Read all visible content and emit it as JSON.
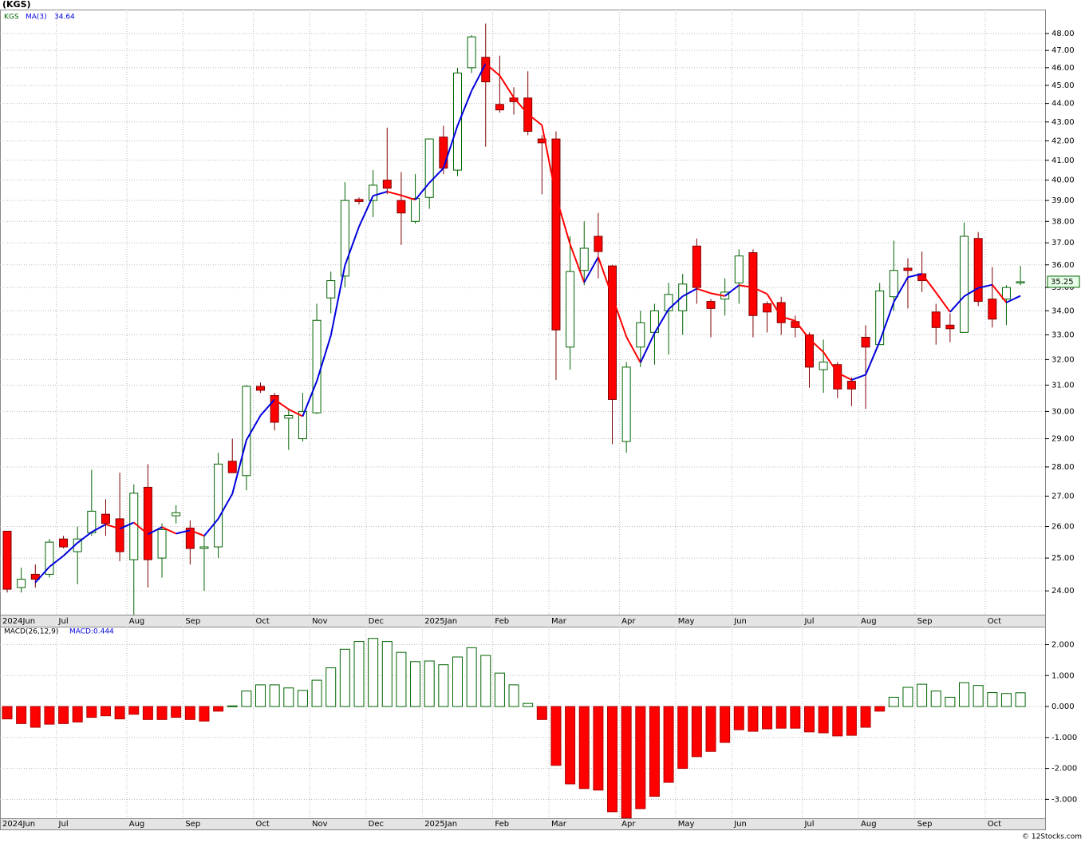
{
  "chart_data": [
    {
      "type": "candlestick",
      "title": "(KGS)",
      "log_scale": true,
      "grid": true,
      "categories": [
        "2024Jun",
        null,
        null,
        null,
        "Jul",
        null,
        null,
        null,
        null,
        "Aug",
        null,
        null,
        null,
        "Sep",
        null,
        null,
        null,
        null,
        "Oct",
        null,
        null,
        null,
        "Nov",
        null,
        null,
        null,
        "Dec",
        null,
        null,
        null,
        "2025Jan",
        null,
        null,
        null,
        null,
        "Feb",
        null,
        null,
        null,
        "Mar",
        null,
        null,
        null,
        null,
        "Apr",
        null,
        null,
        null,
        "May",
        null,
        null,
        null,
        "Jun",
        null,
        null,
        null,
        null,
        "Jul",
        null,
        null,
        null,
        "Aug",
        null,
        null,
        null,
        "Sep",
        null,
        null,
        null,
        null,
        "Oct",
        null,
        null
      ],
      "series": [
        {
          "name": "KGS",
          "color": "#006400",
          "down_color": "#ff0000",
          "open": [
            25.85,
            24.1,
            24.5,
            24.5,
            25.6,
            25.2,
            25.8,
            26.4,
            26.25,
            24.95,
            27.3,
            25.0,
            26.35,
            25.95,
            25.3,
            25.35,
            28.2,
            27.7,
            30.95,
            30.6,
            29.75,
            29.0,
            29.95,
            34.55,
            35.5,
            39.05,
            39.0,
            40.0,
            39.0,
            38.0,
            39.15,
            42.2,
            40.5,
            46.0,
            46.6,
            43.95,
            44.3,
            44.3,
            42.1,
            42.1,
            32.5,
            35.75,
            37.3,
            35.95,
            28.9,
            32.5,
            33.1,
            34.0,
            34.0,
            36.85,
            34.4,
            34.5,
            35.2,
            36.55,
            34.3,
            34.35,
            33.55,
            33.0,
            31.6,
            31.8,
            31.15,
            32.9,
            32.6,
            34.6,
            35.85,
            35.6,
            33.95,
            33.4,
            33.1,
            37.2,
            34.5,
            34.5,
            35.2
          ],
          "high": [
            25.85,
            24.7,
            24.8,
            25.6,
            25.7,
            26.0,
            27.9,
            26.9,
            27.8,
            27.4,
            28.1,
            26.1,
            26.7,
            26.2,
            25.7,
            28.5,
            29.0,
            31.0,
            31.1,
            30.7,
            30.1,
            30.7,
            34.3,
            35.7,
            39.9,
            39.15,
            40.5,
            42.7,
            40.4,
            40.3,
            42.1,
            42.8,
            46.0,
            47.9,
            48.6,
            46.7,
            44.9,
            45.8,
            42.3,
            42.5,
            37.3,
            38.0,
            38.4,
            36.0,
            31.9,
            34.0,
            34.3,
            35.2,
            35.6,
            37.2,
            34.5,
            35.4,
            36.7,
            36.7,
            34.4,
            34.6,
            33.8,
            33.1,
            32.8,
            31.9,
            31.3,
            33.4,
            35.2,
            37.1,
            36.3,
            36.6,
            34.3,
            33.9,
            37.95,
            37.5,
            35.9,
            35.1,
            35.95
          ],
          "low": [
            23.95,
            23.95,
            24.1,
            24.4,
            25.3,
            24.2,
            25.7,
            25.7,
            24.9,
            23.3,
            24.1,
            24.4,
            26.1,
            24.8,
            24.0,
            25.0,
            27.8,
            27.2,
            30.7,
            29.3,
            28.6,
            28.9,
            29.9,
            33.9,
            35.0,
            38.8,
            38.2,
            39.3,
            36.9,
            37.9,
            38.6,
            40.3,
            40.2,
            45.7,
            41.7,
            43.5,
            43.4,
            42.3,
            39.3,
            31.2,
            31.6,
            35.1,
            35.4,
            28.8,
            28.5,
            31.7,
            31.8,
            32.2,
            33.0,
            34.3,
            32.9,
            33.8,
            34.3,
            32.9,
            33.1,
            33.0,
            32.9,
            30.9,
            30.7,
            30.5,
            30.2,
            30.1,
            32.6,
            34.0,
            34.1,
            34.8,
            32.6,
            32.7,
            33.1,
            34.2,
            33.3,
            33.4,
            35.1
          ],
          "close": [
            24.05,
            24.35,
            24.35,
            25.5,
            25.35,
            25.6,
            26.5,
            26.1,
            25.2,
            27.1,
            24.95,
            25.9,
            26.45,
            25.3,
            25.35,
            28.1,
            27.8,
            30.95,
            30.8,
            29.6,
            29.85,
            30.0,
            33.6,
            35.3,
            39.0,
            38.95,
            39.75,
            39.6,
            38.4,
            39.1,
            42.1,
            40.6,
            45.7,
            47.8,
            45.2,
            43.65,
            44.1,
            42.5,
            41.9,
            33.2,
            35.7,
            36.75,
            36.6,
            30.45,
            31.7,
            33.5,
            34.0,
            34.7,
            35.15,
            35.0,
            34.1,
            34.8,
            36.4,
            33.8,
            33.95,
            33.5,
            33.3,
            31.7,
            31.9,
            30.85,
            30.85,
            32.5,
            34.85,
            35.75,
            35.75,
            35.3,
            33.3,
            33.25,
            37.3,
            34.4,
            33.65,
            35.0,
            35.25
          ]
        },
        {
          "name": "MA(3)",
          "color": "#0000dd",
          "down_color": "#ff0000",
          "values": [
            null,
            null,
            24.25,
            24.73,
            25.07,
            25.48,
            25.82,
            26.07,
            25.93,
            26.13,
            25.75,
            25.98,
            25.77,
            25.88,
            25.7,
            26.25,
            27.08,
            28.95,
            29.85,
            30.45,
            30.08,
            29.82,
            31.15,
            32.97,
            35.97,
            37.75,
            39.23,
            39.43,
            39.25,
            39.03,
            39.87,
            40.6,
            42.8,
            44.7,
            46.23,
            45.55,
            44.32,
            43.42,
            42.83,
            39.2,
            36.93,
            35.22,
            36.35,
            34.6,
            32.92,
            31.88,
            33.07,
            34.07,
            34.62,
            34.95,
            34.75,
            34.63,
            35.1,
            35.0,
            34.72,
            33.75,
            33.58,
            32.83,
            32.3,
            31.48,
            31.2,
            31.4,
            32.73,
            34.37,
            35.45,
            35.6,
            34.78,
            33.95,
            34.62,
            34.98,
            35.12,
            34.35,
            34.64
          ]
        }
      ],
      "ylim": [
        23.3,
        49.45
      ],
      "yticks": [
        {
          "value": 24,
          "label": "24.00"
        },
        {
          "value": 25,
          "label": "25.00"
        },
        {
          "value": 26,
          "label": "26.00"
        },
        {
          "value": 27,
          "label": "27.00"
        },
        {
          "value": 28,
          "label": "28.00"
        },
        {
          "value": 29,
          "label": "29.00"
        },
        {
          "value": 30,
          "label": "30.00"
        },
        {
          "value": 31,
          "label": "31.00"
        },
        {
          "value": 32,
          "label": "32.00"
        },
        {
          "value": 33,
          "label": "33.00"
        },
        {
          "value": 34,
          "label": "34.00"
        },
        {
          "value": 35,
          "label": "35.00"
        },
        {
          "value": 36,
          "label": "36.00"
        },
        {
          "value": 37,
          "label": "37.00"
        },
        {
          "value": 38,
          "label": "38.00"
        },
        {
          "value": 39,
          "label": "39.00"
        },
        {
          "value": 40,
          "label": "40.00"
        },
        {
          "value": 41,
          "label": "41.00"
        },
        {
          "value": 42,
          "label": "42.00"
        },
        {
          "value": 43,
          "label": "43.00"
        },
        {
          "value": 44,
          "label": "44.00"
        },
        {
          "value": 45,
          "label": "45.00"
        },
        {
          "value": 46,
          "label": "46.00"
        },
        {
          "value": 47,
          "label": "47.00"
        },
        {
          "value": 48,
          "label": "48.00"
        }
      ]
    },
    {
      "type": "bar",
      "name": "MACD(26,12,9)",
      "legend": "MACD:0.444",
      "color": "#006400",
      "down_color": "#ff0000",
      "grid": true,
      "values": [
        -0.4,
        -0.55,
        -0.67,
        -0.57,
        -0.55,
        -0.5,
        -0.35,
        -0.3,
        -0.4,
        -0.25,
        -0.42,
        -0.42,
        -0.35,
        -0.42,
        -0.47,
        -0.15,
        0.02,
        0.5,
        0.7,
        0.7,
        0.6,
        0.52,
        0.85,
        1.25,
        1.85,
        2.1,
        2.2,
        2.1,
        1.75,
        1.45,
        1.47,
        1.35,
        1.6,
        1.9,
        1.65,
        1.08,
        0.7,
        0.1,
        -0.42,
        -1.9,
        -2.5,
        -2.65,
        -2.7,
        -3.4,
        -3.6,
        -3.3,
        -2.9,
        -2.45,
        -2.0,
        -1.62,
        -1.45,
        -1.16,
        -0.75,
        -0.8,
        -0.72,
        -0.7,
        -0.7,
        -0.82,
        -0.85,
        -0.95,
        -0.93,
        -0.67,
        -0.15,
        0.3,
        0.62,
        0.72,
        0.5,
        0.3,
        0.77,
        0.68,
        0.45,
        0.42,
        0.444
      ],
      "ylim": [
        -3.61,
        2.58
      ],
      "yticks": [
        {
          "value": -3,
          "label": "-3.000"
        },
        {
          "value": -2,
          "label": "-2.000"
        },
        {
          "value": -1,
          "label": "-1.000"
        },
        {
          "value": 0,
          "label": "0.000"
        },
        {
          "value": 1,
          "label": "1.000"
        },
        {
          "value": 2,
          "label": "2.000"
        }
      ],
      "source": "© 12Stocks.com"
    }
  ]
}
